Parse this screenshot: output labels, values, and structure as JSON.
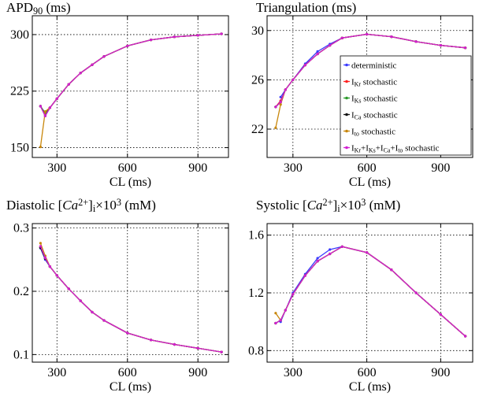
{
  "chart_data": [
    {
      "type": "line",
      "title": "APD90 (ms)",
      "title_parts": [
        "APD",
        "90",
        " (ms)"
      ],
      "xlabel": "CL (ms)",
      "ylabel": "",
      "xlim": [
        195,
        1030
      ],
      "ylim": [
        137,
        325
      ],
      "xticks": [
        300,
        600,
        900
      ],
      "yticks": [
        150,
        225,
        300
      ],
      "grid": true,
      "series": [
        {
          "name": "deterministic",
          "color": "#3a3aff",
          "x": [
            250,
            270,
            300,
            350,
            400,
            450,
            500,
            600,
            700,
            800,
            900,
            1000
          ],
          "y": [
            195,
            203,
            215,
            234,
            249,
            260,
            271,
            285,
            293,
            297,
            299,
            301
          ]
        },
        {
          "name": "IKr stochastic",
          "color": "#ff2020",
          "x": [
            230,
            250,
            270,
            300,
            350,
            400,
            450,
            500,
            600,
            700,
            800,
            900,
            1000
          ],
          "y": [
            205,
            193,
            203,
            215,
            234,
            249,
            260,
            271,
            285,
            293,
            297,
            299,
            301
          ]
        },
        {
          "name": "IKs stochastic",
          "color": "#2a9a2a",
          "x": [
            230,
            250,
            270,
            300,
            350,
            400,
            450,
            500,
            600,
            700,
            800,
            900,
            1000
          ],
          "y": [
            205,
            196,
            203,
            215,
            234,
            249,
            260,
            271,
            285,
            293,
            297,
            299,
            301
          ]
        },
        {
          "name": "ICa stochastic",
          "color": "#111111",
          "x": [
            230,
            250,
            270,
            300,
            350,
            400,
            450,
            500,
            600,
            700,
            800,
            900,
            1000
          ],
          "y": [
            205,
            192,
            203,
            215,
            234,
            249,
            260,
            271,
            285,
            293,
            297,
            299,
            301
          ]
        },
        {
          "name": "Ito stochastic",
          "color": "#c8860a",
          "x": [
            230,
            250,
            270,
            300,
            350,
            400,
            450,
            500,
            600,
            700,
            800,
            900,
            1000
          ],
          "y": [
            151,
            198,
            203,
            215,
            234,
            249,
            260,
            271,
            285,
            293,
            297,
            299,
            301
          ]
        },
        {
          "name": "IKr+IKs+ICa+Ito stochastic",
          "color": "#d21fd2",
          "x": [
            230,
            250,
            270,
            300,
            350,
            400,
            450,
            500,
            600,
            700,
            800,
            900,
            1000
          ],
          "y": [
            205,
            192,
            203,
            215,
            234,
            249,
            260,
            271,
            285,
            293,
            297,
            299,
            301
          ]
        }
      ]
    },
    {
      "type": "line",
      "title": "Triangulation (ms)",
      "xlabel": "CL (ms)",
      "ylabel": "",
      "xlim": [
        195,
        1030
      ],
      "ylim": [
        19.7,
        31.2
      ],
      "xticks": [
        300,
        600,
        900
      ],
      "yticks": [
        22,
        26,
        30
      ],
      "grid": true,
      "legend_position": "center-right",
      "legend": [
        {
          "label": "deterministic",
          "parts": [
            "deterministic"
          ],
          "color": "#3a3aff"
        },
        {
          "label": "IKr stochastic",
          "parts": [
            "I",
            "Kr",
            " stochastic"
          ],
          "color": "#ff2020"
        },
        {
          "label": "IKs stochastic",
          "parts": [
            "I",
            "Ks",
            " stochastic"
          ],
          "color": "#2a9a2a"
        },
        {
          "label": "ICa stochastic",
          "parts": [
            "I",
            "Ca",
            " stochastic"
          ],
          "color": "#111111"
        },
        {
          "label": "Ito stochastic",
          "parts": [
            "I",
            "to",
            " stochastic"
          ],
          "color": "#c8860a"
        },
        {
          "label": "IKr+IKs+ICa+Ito stochastic",
          "parts": [
            "I",
            "Kr",
            "+I",
            "Ks",
            "+I",
            "Ca",
            "+I",
            "to",
            " stochastic"
          ],
          "color": "#d21fd2"
        }
      ],
      "series": [
        {
          "name": "deterministic",
          "color": "#3a3aff",
          "x": [
            250,
            270,
            300,
            350,
            400,
            450,
            500,
            600,
            700,
            800,
            900,
            1000
          ],
          "y": [
            24.6,
            25.2,
            26.0,
            27.3,
            28.3,
            28.9,
            29.4,
            29.7,
            29.5,
            29.1,
            28.8,
            28.6
          ]
        },
        {
          "name": "IKr stochastic",
          "color": "#ff2020",
          "x": [
            230,
            250,
            270,
            300,
            350,
            400,
            450,
            500,
            600,
            700,
            800,
            900,
            1000
          ],
          "y": [
            23.8,
            24.3,
            25.2,
            26.0,
            27.2,
            28.1,
            28.8,
            29.4,
            29.7,
            29.5,
            29.1,
            28.8,
            28.6
          ]
        },
        {
          "name": "IKs stochastic",
          "color": "#2a9a2a",
          "x": [
            230,
            250,
            270,
            300,
            350,
            400,
            450,
            500,
            600,
            700,
            800,
            900,
            1000
          ],
          "y": [
            23.8,
            24.2,
            25.2,
            26.0,
            27.2,
            28.1,
            28.8,
            29.4,
            29.7,
            29.5,
            29.1,
            28.8,
            28.6
          ]
        },
        {
          "name": "ICa stochastic",
          "color": "#111111",
          "x": [
            230,
            250,
            270,
            300,
            350,
            400,
            450,
            500,
            600,
            700,
            800,
            900,
            1000
          ],
          "y": [
            23.8,
            24.2,
            25.2,
            26.0,
            27.2,
            28.1,
            28.8,
            29.4,
            29.7,
            29.5,
            29.1,
            28.8,
            28.6
          ]
        },
        {
          "name": "Ito stochastic",
          "color": "#c8860a",
          "x": [
            230,
            250,
            270,
            300,
            350,
            400,
            450,
            500,
            600,
            700,
            800,
            900,
            1000
          ],
          "y": [
            22.1,
            24.0,
            25.2,
            26.0,
            27.2,
            28.1,
            28.8,
            29.4,
            29.7,
            29.5,
            29.1,
            28.8,
            28.6
          ]
        },
        {
          "name": "IKr+IKs+ICa+Ito stochastic",
          "color": "#d21fd2",
          "x": [
            230,
            250,
            270,
            300,
            350,
            400,
            450,
            500,
            600,
            700,
            800,
            900,
            1000
          ],
          "y": [
            23.8,
            24.2,
            25.2,
            26.0,
            27.2,
            28.1,
            28.8,
            29.4,
            29.7,
            29.5,
            29.1,
            28.8,
            28.6
          ]
        }
      ]
    },
    {
      "type": "line",
      "title": "Diastolic [Ca2+]i×10^3 (mM)",
      "title_parts": [
        "Diastolic [",
        "Ca",
        "2+",
        "]",
        "i",
        "×10",
        "3",
        " (mM)"
      ],
      "xlabel": "CL (ms)",
      "ylabel": "",
      "xlim": [
        195,
        1030
      ],
      "ylim": [
        0.088,
        0.307
      ],
      "xticks": [
        300,
        600,
        900
      ],
      "yticks": [
        0.1,
        0.2,
        0.3
      ],
      "grid": true,
      "series": [
        {
          "name": "deterministic",
          "color": "#3a3aff",
          "x": [
            230,
            250,
            270,
            300,
            350,
            400,
            450,
            500,
            600,
            700,
            800,
            900,
            1000
          ],
          "y": [
            0.268,
            0.25,
            0.239,
            0.225,
            0.204,
            0.185,
            0.167,
            0.154,
            0.134,
            0.123,
            0.116,
            0.11,
            0.104
          ]
        },
        {
          "name": "IKr stochastic",
          "color": "#ff2020",
          "x": [
            230,
            250,
            270,
            300,
            350,
            400,
            450,
            500,
            600,
            700,
            800,
            900,
            1000
          ],
          "y": [
            0.27,
            0.252,
            0.239,
            0.225,
            0.204,
            0.185,
            0.167,
            0.154,
            0.134,
            0.123,
            0.116,
            0.11,
            0.104
          ]
        },
        {
          "name": "IKs stochastic",
          "color": "#2a9a2a",
          "x": [
            230,
            250,
            270,
            300,
            350,
            400,
            450,
            500,
            600,
            700,
            800,
            900,
            1000
          ],
          "y": [
            0.269,
            0.252,
            0.239,
            0.225,
            0.204,
            0.185,
            0.167,
            0.154,
            0.134,
            0.123,
            0.116,
            0.11,
            0.104
          ]
        },
        {
          "name": "ICa stochastic",
          "color": "#111111",
          "x": [
            230,
            250,
            270,
            300,
            350,
            400,
            450,
            500,
            600,
            700,
            800,
            900,
            1000
          ],
          "y": [
            0.269,
            0.252,
            0.239,
            0.225,
            0.204,
            0.185,
            0.167,
            0.154,
            0.134,
            0.123,
            0.116,
            0.11,
            0.104
          ]
        },
        {
          "name": "Ito stochastic",
          "color": "#c8860a",
          "x": [
            230,
            250,
            270,
            300,
            350,
            400,
            450,
            500,
            600,
            700,
            800,
            900,
            1000
          ],
          "y": [
            0.276,
            0.256,
            0.239,
            0.225,
            0.204,
            0.185,
            0.167,
            0.154,
            0.134,
            0.123,
            0.116,
            0.11,
            0.104
          ]
        },
        {
          "name": "IKr+IKs+ICa+Ito stochastic",
          "color": "#d21fd2",
          "x": [
            230,
            250,
            270,
            300,
            350,
            400,
            450,
            500,
            600,
            700,
            800,
            900,
            1000
          ],
          "y": [
            0.271,
            0.253,
            0.239,
            0.225,
            0.204,
            0.185,
            0.167,
            0.154,
            0.134,
            0.123,
            0.116,
            0.11,
            0.104
          ]
        }
      ]
    },
    {
      "type": "line",
      "title": "Systolic [Ca2+]i×10^3 (mM)",
      "title_parts": [
        "Systolic [",
        "Ca",
        "2+",
        "]",
        "i",
        "×10",
        "3",
        " (mM)"
      ],
      "xlabel": "CL (ms)",
      "ylabel": "",
      "xlim": [
        195,
        1030
      ],
      "ylim": [
        0.72,
        1.68
      ],
      "xticks": [
        300,
        600,
        900
      ],
      "yticks": [
        0.8,
        1.2,
        1.6
      ],
      "grid": true,
      "series": [
        {
          "name": "deterministic",
          "color": "#3a3aff",
          "x": [
            250,
            270,
            300,
            350,
            400,
            450,
            500,
            600,
            700,
            800,
            900,
            1000
          ],
          "y": [
            1.0,
            1.08,
            1.2,
            1.33,
            1.44,
            1.5,
            1.52,
            1.48,
            1.36,
            1.2,
            1.05,
            0.9
          ]
        },
        {
          "name": "IKr stochastic",
          "color": "#ff2020",
          "x": [
            230,
            250,
            270,
            300,
            350,
            400,
            450,
            500,
            600,
            700,
            800,
            900,
            1000
          ],
          "y": [
            0.99,
            1.01,
            1.08,
            1.19,
            1.32,
            1.42,
            1.47,
            1.52,
            1.48,
            1.36,
            1.2,
            1.05,
            0.9
          ]
        },
        {
          "name": "IKs stochastic",
          "color": "#2a9a2a",
          "x": [
            230,
            250,
            270,
            300,
            350,
            400,
            450,
            500,
            600,
            700,
            800,
            900,
            1000
          ],
          "y": [
            0.99,
            1.01,
            1.08,
            1.19,
            1.32,
            1.42,
            1.47,
            1.52,
            1.48,
            1.36,
            1.2,
            1.05,
            0.9
          ]
        },
        {
          "name": "ICa stochastic",
          "color": "#111111",
          "x": [
            230,
            250,
            270,
            300,
            350,
            400,
            450,
            500,
            600,
            700,
            800,
            900,
            1000
          ],
          "y": [
            0.99,
            1.01,
            1.08,
            1.19,
            1.32,
            1.42,
            1.47,
            1.52,
            1.48,
            1.36,
            1.2,
            1.05,
            0.9
          ]
        },
        {
          "name": "Ito stochastic",
          "color": "#c8860a",
          "x": [
            230,
            250,
            270,
            300,
            350,
            400,
            450,
            500,
            600,
            700,
            800,
            900,
            1000
          ],
          "y": [
            1.06,
            1.01,
            1.08,
            1.19,
            1.32,
            1.42,
            1.47,
            1.52,
            1.48,
            1.36,
            1.2,
            1.05,
            0.9
          ]
        },
        {
          "name": "IKr+IKs+ICa+Ito stochastic",
          "color": "#d21fd2",
          "x": [
            230,
            250,
            270,
            300,
            350,
            400,
            450,
            500,
            600,
            700,
            800,
            900,
            1000
          ],
          "y": [
            0.99,
            1.01,
            1.08,
            1.19,
            1.32,
            1.42,
            1.47,
            1.52,
            1.48,
            1.36,
            1.2,
            1.05,
            0.9
          ]
        }
      ]
    }
  ]
}
